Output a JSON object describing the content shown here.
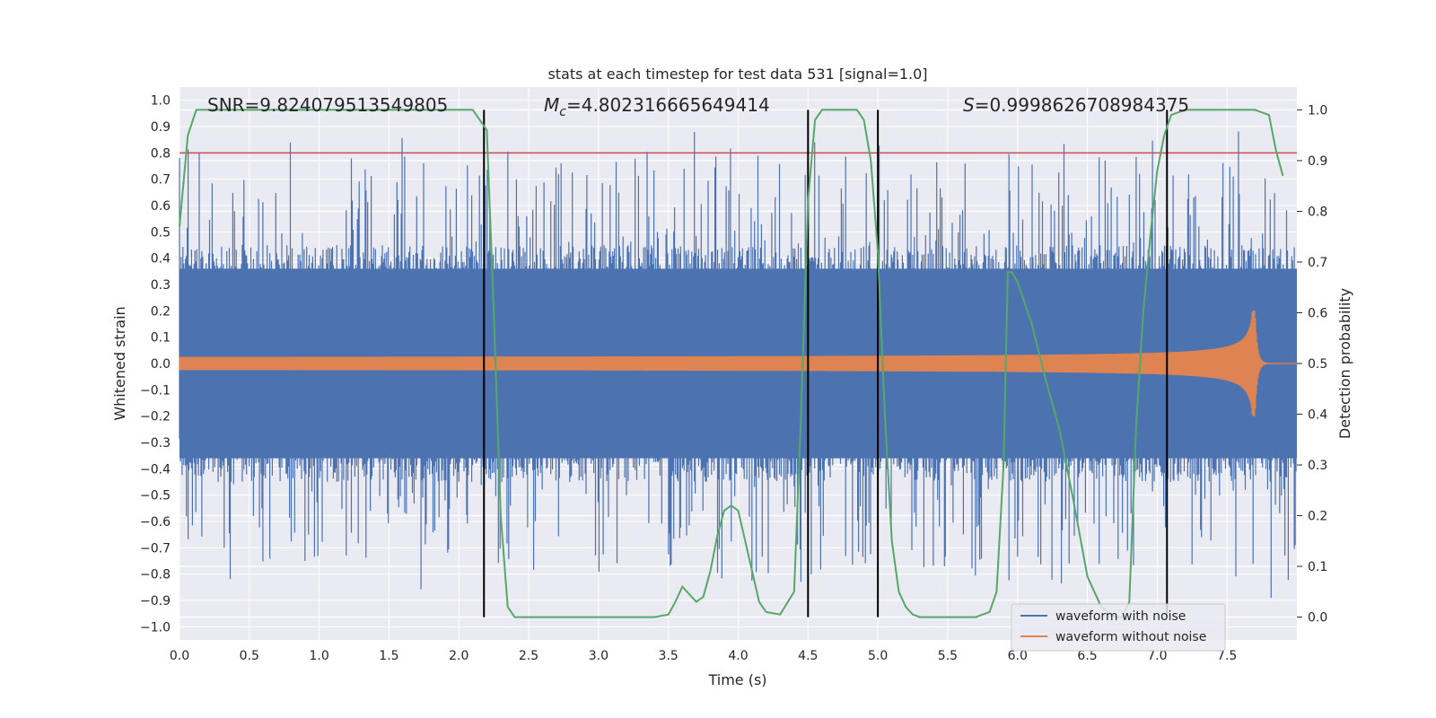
{
  "chart_data": {
    "type": "line",
    "title": "stats at each timestep for test data 531 [signal=1.0]",
    "xlabel": "Time (s)",
    "ylabel": "Whitened strain",
    "ylabel_right": "Detection probability",
    "xlim": [
      0,
      8
    ],
    "ylim": [
      -1.05,
      1.05
    ],
    "ylim_right": [
      -0.045,
      1.045
    ],
    "x_ticks": [
      "0.0",
      "0.5",
      "1.0",
      "1.5",
      "2.0",
      "2.5",
      "3.0",
      "3.5",
      "4.0",
      "4.5",
      "5.0",
      "5.5",
      "6.0",
      "6.5",
      "7.0",
      "7.5"
    ],
    "y_ticks": [
      "1.0",
      "0.9",
      "0.8",
      "0.7",
      "0.6",
      "0.5",
      "0.4",
      "0.3",
      "0.2",
      "0.1",
      "0.0",
      "−0.1",
      "−0.2",
      "−0.3",
      "−0.4",
      "−0.5",
      "−0.6",
      "−0.7",
      "−0.8",
      "−0.9",
      "−1.0"
    ],
    "y_ticks_right": [
      "1.0",
      "0.9",
      "0.8",
      "0.7",
      "0.6",
      "0.5",
      "0.4",
      "0.3",
      "0.2",
      "0.1",
      "0.0"
    ],
    "annotations": {
      "snr": "SNR=9.824079513549805",
      "mc_symbol": "M",
      "mc_sub": "c",
      "mc_value": "=4.802316665649414",
      "s_symbol": "S",
      "s_value": "=0.9998626708984375"
    },
    "threshold_y": 0.8,
    "vertical_lines_x": [
      2.18,
      4.5,
      5.0,
      7.07
    ],
    "series": [
      {
        "name": "waveform with noise",
        "color": "#4c72b0",
        "kind": "noise",
        "typical_peak": 0.45,
        "max_peak": 1.0
      },
      {
        "name": "waveform without noise",
        "color": "#dd8452",
        "kind": "chirp",
        "start_amp": 0.02,
        "peak_amp": 0.22,
        "merger_x": 7.7
      },
      {
        "name": "",
        "axis": "right",
        "color": "#55a868",
        "x": [
          0.0,
          0.02,
          0.06,
          0.12,
          0.2,
          0.4,
          1.0,
          2.0,
          2.1,
          2.15,
          2.2,
          2.25,
          2.3,
          2.35,
          2.4,
          2.45,
          2.5,
          3.0,
          3.4,
          3.5,
          3.55,
          3.6,
          3.65,
          3.7,
          3.75,
          3.8,
          3.85,
          3.9,
          3.95,
          4.0,
          4.05,
          4.1,
          4.15,
          4.2,
          4.3,
          4.4,
          4.45,
          4.5,
          4.55,
          4.6,
          4.7,
          4.85,
          4.9,
          4.95,
          5.0,
          5.05,
          5.1,
          5.15,
          5.2,
          5.25,
          5.3,
          5.7,
          5.8,
          5.85,
          5.9,
          5.93,
          5.96,
          6.0,
          6.1,
          6.2,
          6.3,
          6.4,
          6.5,
          6.6,
          6.7,
          6.75,
          6.8,
          6.85,
          6.9,
          6.95,
          7.0,
          7.05,
          7.1,
          7.2,
          7.3,
          7.4,
          7.7,
          7.8,
          7.85,
          7.9
        ],
        "y": [
          0.77,
          0.83,
          0.95,
          1.0,
          1.0,
          1.0,
          1.0,
          1.0,
          1.0,
          0.98,
          0.96,
          0.6,
          0.2,
          0.02,
          0.0,
          0.0,
          0.0,
          0.0,
          0.0,
          0.005,
          0.03,
          0.06,
          0.045,
          0.03,
          0.04,
          0.09,
          0.16,
          0.21,
          0.22,
          0.21,
          0.15,
          0.09,
          0.03,
          0.01,
          0.005,
          0.05,
          0.4,
          0.82,
          0.98,
          1.0,
          1.0,
          1.0,
          0.98,
          0.9,
          0.72,
          0.4,
          0.15,
          0.05,
          0.02,
          0.005,
          0.0,
          0.0,
          0.01,
          0.05,
          0.3,
          0.68,
          0.68,
          0.66,
          0.58,
          0.47,
          0.37,
          0.23,
          0.08,
          0.02,
          0.0,
          0.0,
          0.03,
          0.38,
          0.6,
          0.75,
          0.88,
          0.95,
          0.99,
          1.0,
          1.0,
          1.0,
          1.0,
          0.99,
          0.92,
          0.87
        ]
      },
      {
        "name": "",
        "axis": "left",
        "color": "#c44e52",
        "kind": "threshold",
        "y": 0.8
      }
    ],
    "grid": true,
    "legend_placement": "bottom-right"
  },
  "legend": {
    "item1": "waveform with noise",
    "item2": "waveform without noise"
  },
  "colors": {
    "plot_bg": "#eaeaf2",
    "grid": "#ffffff",
    "noise": "#4c72b0",
    "chirp": "#dd8452",
    "prob": "#55a868",
    "threshold": "#c44e52",
    "vline": "#000000"
  }
}
